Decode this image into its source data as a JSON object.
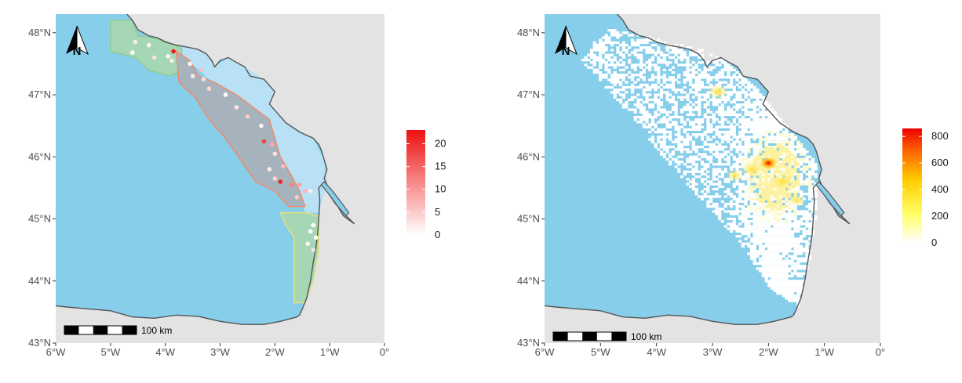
{
  "colors": {
    "sea": "#87ceeb",
    "land": "#e3e3e3",
    "coast_zone": "#b9e1f5",
    "zone_green": "#a5d7b5",
    "zone_gray": "#a7b3bc",
    "border_green": "#8fcc8f",
    "border_orange": "#f08a6a",
    "border_yellow": "#e6e07a",
    "coast_line": "#555555"
  },
  "maps": [
    {
      "id": "left",
      "x_ticks": [
        "6°W",
        "5°W",
        "4°W",
        "3°W",
        "2°W",
        "1°W",
        "0°"
      ],
      "y_ticks": [
        "48°N",
        "47°N",
        "46°N",
        "45°N",
        "44°N",
        "43°N"
      ],
      "north_label": "N",
      "scale_label": "100 km",
      "legend": {
        "ticks": [
          "20",
          "15",
          "10",
          "5",
          "0"
        ],
        "tick_values": [
          20,
          15,
          10,
          5,
          0
        ],
        "max": 23,
        "colors": [
          "#ffffff",
          "#ee1111"
        ]
      },
      "zones": [
        {
          "name": "north-green-zone",
          "lonlat": [
            [
              -5.0,
              48.2
            ],
            [
              -4.6,
              48.2
            ],
            [
              -4.5,
              47.95
            ],
            [
              -4.1,
              47.9
            ],
            [
              -3.7,
              47.75
            ],
            [
              -3.7,
              47.4
            ],
            [
              -3.9,
              47.3
            ],
            [
              -4.3,
              47.4
            ],
            [
              -4.55,
              47.6
            ],
            [
              -5.0,
              47.7
            ]
          ]
        },
        {
          "name": "central-gray-zone",
          "lonlat": [
            [
              -3.8,
              47.7
            ],
            [
              -3.55,
              47.55
            ],
            [
              -3.4,
              47.3
            ],
            [
              -3.1,
              47.2
            ],
            [
              -2.7,
              47.0
            ],
            [
              -2.4,
              46.8
            ],
            [
              -2.1,
              46.6
            ],
            [
              -2.0,
              46.3
            ],
            [
              -1.9,
              46.0
            ],
            [
              -1.7,
              45.7
            ],
            [
              -1.55,
              45.45
            ],
            [
              -1.45,
              45.2
            ],
            [
              -1.75,
              45.2
            ],
            [
              -2.0,
              45.45
            ],
            [
              -2.35,
              45.6
            ],
            [
              -2.55,
              45.85
            ],
            [
              -2.7,
              46.05
            ],
            [
              -2.95,
              46.35
            ],
            [
              -3.2,
              46.6
            ],
            [
              -3.45,
              46.95
            ],
            [
              -3.75,
              47.2
            ]
          ]
        },
        {
          "name": "south-green-zone",
          "lonlat": [
            [
              -1.45,
              45.1
            ],
            [
              -1.2,
              45.05
            ],
            [
              -1.2,
              44.5
            ],
            [
              -1.3,
              44.0
            ],
            [
              -1.45,
              43.65
            ],
            [
              -1.65,
              43.65
            ],
            [
              -1.65,
              44.7
            ],
            [
              -1.8,
              44.9
            ],
            [
              -1.9,
              45.1
            ]
          ]
        }
      ],
      "points": [
        {
          "lon": -4.55,
          "lat": 47.85,
          "value": 2
        },
        {
          "lon": -4.3,
          "lat": 47.8,
          "value": 1
        },
        {
          "lon": -4.6,
          "lat": 47.68,
          "value": 0
        },
        {
          "lon": -4.2,
          "lat": 47.6,
          "value": 3
        },
        {
          "lon": -3.95,
          "lat": 47.62,
          "value": 1
        },
        {
          "lon": -3.85,
          "lat": 47.7,
          "value": 22
        },
        {
          "lon": -3.88,
          "lat": 47.55,
          "value": 2
        },
        {
          "lon": -3.55,
          "lat": 47.5,
          "value": 1
        },
        {
          "lon": -3.35,
          "lat": 47.4,
          "value": 6
        },
        {
          "lon": -3.3,
          "lat": 47.25,
          "value": 3
        },
        {
          "lon": -3.5,
          "lat": 47.3,
          "value": 2
        },
        {
          "lon": -3.2,
          "lat": 47.1,
          "value": 4
        },
        {
          "lon": -2.9,
          "lat": 47.0,
          "value": 0
        },
        {
          "lon": -2.7,
          "lat": 46.8,
          "value": 3
        },
        {
          "lon": -2.5,
          "lat": 46.65,
          "value": 5
        },
        {
          "lon": -2.25,
          "lat": 46.5,
          "value": 1
        },
        {
          "lon": -2.2,
          "lat": 46.25,
          "value": 18
        },
        {
          "lon": -2.05,
          "lat": 46.2,
          "value": 8
        },
        {
          "lon": -2.0,
          "lat": 46.05,
          "value": 3
        },
        {
          "lon": -1.85,
          "lat": 45.85,
          "value": 6
        },
        {
          "lon": -2.1,
          "lat": 45.8,
          "value": 2
        },
        {
          "lon": -1.9,
          "lat": 45.6,
          "value": 21
        },
        {
          "lon": -1.7,
          "lat": 45.55,
          "value": 12
        },
        {
          "lon": -1.55,
          "lat": 45.55,
          "value": 9
        },
        {
          "lon": -1.45,
          "lat": 45.45,
          "value": 7
        },
        {
          "lon": -1.6,
          "lat": 45.35,
          "value": 5
        },
        {
          "lon": -2.0,
          "lat": 45.65,
          "value": 4
        },
        {
          "lon": -1.35,
          "lat": 45.45,
          "value": 2
        },
        {
          "lon": -1.3,
          "lat": 44.9,
          "value": 0
        },
        {
          "lon": -1.35,
          "lat": 44.8,
          "value": 0
        },
        {
          "lon": -1.4,
          "lat": 44.6,
          "value": 1
        },
        {
          "lon": -1.3,
          "lat": 44.5,
          "value": 3
        },
        {
          "lon": -1.25,
          "lat": 44.7,
          "value": 0
        }
      ]
    },
    {
      "id": "right",
      "x_ticks": [
        "6°W",
        "5°W",
        "4°W",
        "3°W",
        "2°W",
        "1°W",
        "0°"
      ],
      "y_ticks": [
        "48°N",
        "47°N",
        "46°N",
        "45°N",
        "44°N",
        "43°N"
      ],
      "north_label": "N",
      "scale_label": "100 km",
      "legend": {
        "ticks": [
          "800",
          "600",
          "400",
          "200",
          "0"
        ],
        "tick_values": [
          800,
          600,
          400,
          200,
          0
        ],
        "max": 860,
        "colors": [
          "#ffffff",
          "#ffff66",
          "#ffcc00",
          "#ff6600",
          "#ee0000"
        ]
      },
      "hotspots": [
        {
          "lon": -2.0,
          "lat": 45.9,
          "value": 800
        },
        {
          "lon": -1.75,
          "lat": 45.6,
          "value": 250
        },
        {
          "lon": -2.3,
          "lat": 45.8,
          "value": 180
        },
        {
          "lon": -2.9,
          "lat": 47.05,
          "value": 160
        },
        {
          "lon": -2.6,
          "lat": 45.7,
          "value": 90
        },
        {
          "lon": -1.5,
          "lat": 45.3,
          "value": 80
        }
      ]
    }
  ]
}
